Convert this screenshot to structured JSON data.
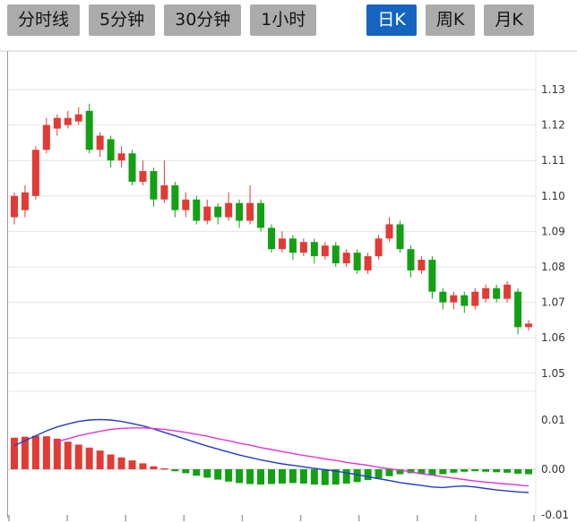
{
  "tabs": {
    "items": [
      {
        "id": "timeline",
        "label": "分时线",
        "active": false,
        "gap_before": false
      },
      {
        "id": "5min",
        "label": "5分钟",
        "active": false,
        "gap_before": false
      },
      {
        "id": "30min",
        "label": "30分钟",
        "active": false,
        "gap_before": false
      },
      {
        "id": "1hour",
        "label": "1小时",
        "active": false,
        "gap_before": false
      },
      {
        "id": "daily",
        "label": "日K",
        "active": true,
        "gap_before": true
      },
      {
        "id": "weekly",
        "label": "周K",
        "active": false,
        "gap_before": false
      },
      {
        "id": "monthly",
        "label": "月K",
        "active": false,
        "gap_before": false
      }
    ]
  },
  "colors": {
    "up": "#e23a35",
    "down": "#12a112",
    "dif_line": "#2438cf",
    "dea_line": "#e135d8",
    "active_tab_bg": "#1565c0",
    "tab_bg": "#ababab",
    "grid": "#e4e4e4",
    "axis_line": "#999999",
    "axis_text": "#333333"
  },
  "chart_data": {
    "type": "candlestick",
    "title": "",
    "xlabel": "",
    "ylabel": "",
    "legend": "none",
    "grid": true,
    "convention": "chinese (red = up, green = down)",
    "main": {
      "yticks": [
        "1.13",
        "1.12",
        "1.11",
        "1.10",
        "1.09",
        "1.08",
        "1.07",
        "1.06",
        "1.05"
      ],
      "ylim": [
        1.045,
        1.141
      ],
      "candles_ohlc": [
        [
          1.094,
          1.101,
          1.092,
          1.1
        ],
        [
          1.096,
          1.103,
          1.094,
          1.101
        ],
        [
          1.1,
          1.114,
          1.099,
          1.113
        ],
        [
          1.113,
          1.122,
          1.112,
          1.12
        ],
        [
          1.119,
          1.123,
          1.117,
          1.122
        ],
        [
          1.12,
          1.124,
          1.119,
          1.122
        ],
        [
          1.121,
          1.125,
          1.12,
          1.123
        ],
        [
          1.124,
          1.126,
          1.112,
          1.113
        ],
        [
          1.113,
          1.118,
          1.111,
          1.117
        ],
        [
          1.116,
          1.117,
          1.108,
          1.11
        ],
        [
          1.11,
          1.114,
          1.108,
          1.112
        ],
        [
          1.112,
          1.113,
          1.103,
          1.104
        ],
        [
          1.104,
          1.11,
          1.103,
          1.107
        ],
        [
          1.107,
          1.108,
          1.097,
          1.099
        ],
        [
          1.099,
          1.11,
          1.098,
          1.103
        ],
        [
          1.103,
          1.104,
          1.094,
          1.096
        ],
        [
          1.096,
          1.101,
          1.094,
          1.099
        ],
        [
          1.099,
          1.1,
          1.092,
          1.093
        ],
        [
          1.093,
          1.099,
          1.092,
          1.097
        ],
        [
          1.097,
          1.098,
          1.092,
          1.094
        ],
        [
          1.094,
          1.101,
          1.093,
          1.098
        ],
        [
          1.098,
          1.099,
          1.091,
          1.093
        ],
        [
          1.093,
          1.103,
          1.092,
          1.098
        ],
        [
          1.098,
          1.099,
          1.09,
          1.091
        ],
        [
          1.091,
          1.092,
          1.084,
          1.085
        ],
        [
          1.085,
          1.09,
          1.084,
          1.088
        ],
        [
          1.088,
          1.089,
          1.082,
          1.084
        ],
        [
          1.084,
          1.088,
          1.083,
          1.087
        ],
        [
          1.087,
          1.088,
          1.081,
          1.083
        ],
        [
          1.083,
          1.087,
          1.082,
          1.086
        ],
        [
          1.086,
          1.087,
          1.08,
          1.081
        ],
        [
          1.081,
          1.085,
          1.08,
          1.084
        ],
        [
          1.084,
          1.085,
          1.078,
          1.079
        ],
        [
          1.079,
          1.084,
          1.078,
          1.083
        ],
        [
          1.083,
          1.089,
          1.082,
          1.088
        ],
        [
          1.088,
          1.094,
          1.087,
          1.092
        ],
        [
          1.092,
          1.093,
          1.084,
          1.085
        ],
        [
          1.085,
          1.086,
          1.077,
          1.079
        ],
        [
          1.079,
          1.083,
          1.078,
          1.082
        ],
        [
          1.082,
          1.083,
          1.071,
          1.073
        ],
        [
          1.073,
          1.074,
          1.068,
          1.07
        ],
        [
          1.07,
          1.073,
          1.068,
          1.072
        ],
        [
          1.072,
          1.073,
          1.067,
          1.069
        ],
        [
          1.069,
          1.074,
          1.068,
          1.073
        ],
        [
          1.071,
          1.075,
          1.07,
          1.074
        ],
        [
          1.074,
          1.075,
          1.07,
          1.071
        ],
        [
          1.071,
          1.076,
          1.07,
          1.075
        ],
        [
          1.073,
          1.074,
          1.061,
          1.063
        ],
        [
          1.063,
          1.065,
          1.062,
          1.064
        ]
      ]
    },
    "macd": {
      "yticks": [
        {
          "v": 0.01,
          "label": "0.01"
        },
        {
          "v": 0.0,
          "label": "0.00"
        },
        {
          "v": -0.01,
          "label": "-0.01"
        }
      ],
      "ylim": [
        -0.011,
        0.0125
      ],
      "hist": [
        0.0064,
        0.0066,
        0.0068,
        0.0067,
        0.0062,
        0.0056,
        0.005,
        0.0044,
        0.0038,
        0.003,
        0.0024,
        0.0018,
        0.0012,
        0.0006,
        0.0002,
        -0.0004,
        -0.0008,
        -0.0013,
        -0.0017,
        -0.0021,
        -0.0025,
        -0.0028,
        -0.003,
        -0.0031,
        -0.003,
        -0.0029,
        -0.0028,
        -0.0029,
        -0.0031,
        -0.0032,
        -0.0031,
        -0.0029,
        -0.0026,
        -0.0022,
        -0.0018,
        -0.0014,
        -0.001,
        -0.0008,
        -0.001,
        -0.0012,
        -0.001,
        -0.0007,
        -0.0005,
        -0.0004,
        -0.0005,
        -0.0006,
        -0.0007,
        -0.0009,
        -0.001
      ],
      "dif": [
        0.0048,
        0.0058,
        0.0068,
        0.0078,
        0.0086,
        0.0092,
        0.0097,
        0.01,
        0.0101,
        0.01,
        0.0097,
        0.0093,
        0.0088,
        0.0082,
        0.0075,
        0.0068,
        0.0061,
        0.0054,
        0.0047,
        0.0041,
        0.0035,
        0.0029,
        0.0024,
        0.0019,
        0.0015,
        0.0011,
        0.0008,
        0.0005,
        0.0002,
        -0.0001,
        -0.0004,
        -0.0007,
        -0.0011,
        -0.0015,
        -0.0019,
        -0.0023,
        -0.0027,
        -0.003,
        -0.0033,
        -0.0036,
        -0.0037,
        -0.0035,
        -0.0034,
        -0.0036,
        -0.0039,
        -0.0042,
        -0.0044,
        -0.0046,
        -0.0047
      ],
      "dea": [
        null,
        null,
        null,
        null,
        0.0056,
        0.0062,
        0.0068,
        0.0073,
        0.0077,
        0.0081,
        0.0083,
        0.0084,
        0.0084,
        0.0083,
        0.0081,
        0.0078,
        0.0075,
        0.0071,
        0.0067,
        0.0062,
        0.0058,
        0.0053,
        0.0049,
        0.0044,
        0.004,
        0.0036,
        0.0032,
        0.0028,
        0.0025,
        0.0021,
        0.0018,
        0.0014,
        0.0011,
        0.0008,
        0.0004,
        0.0001,
        -0.0002,
        -0.0005,
        -0.0009,
        -0.0012,
        -0.0015,
        -0.0018,
        -0.0021,
        -0.0024,
        -0.0026,
        -0.0028,
        -0.003,
        -0.0032,
        -0.0034
      ]
    }
  }
}
